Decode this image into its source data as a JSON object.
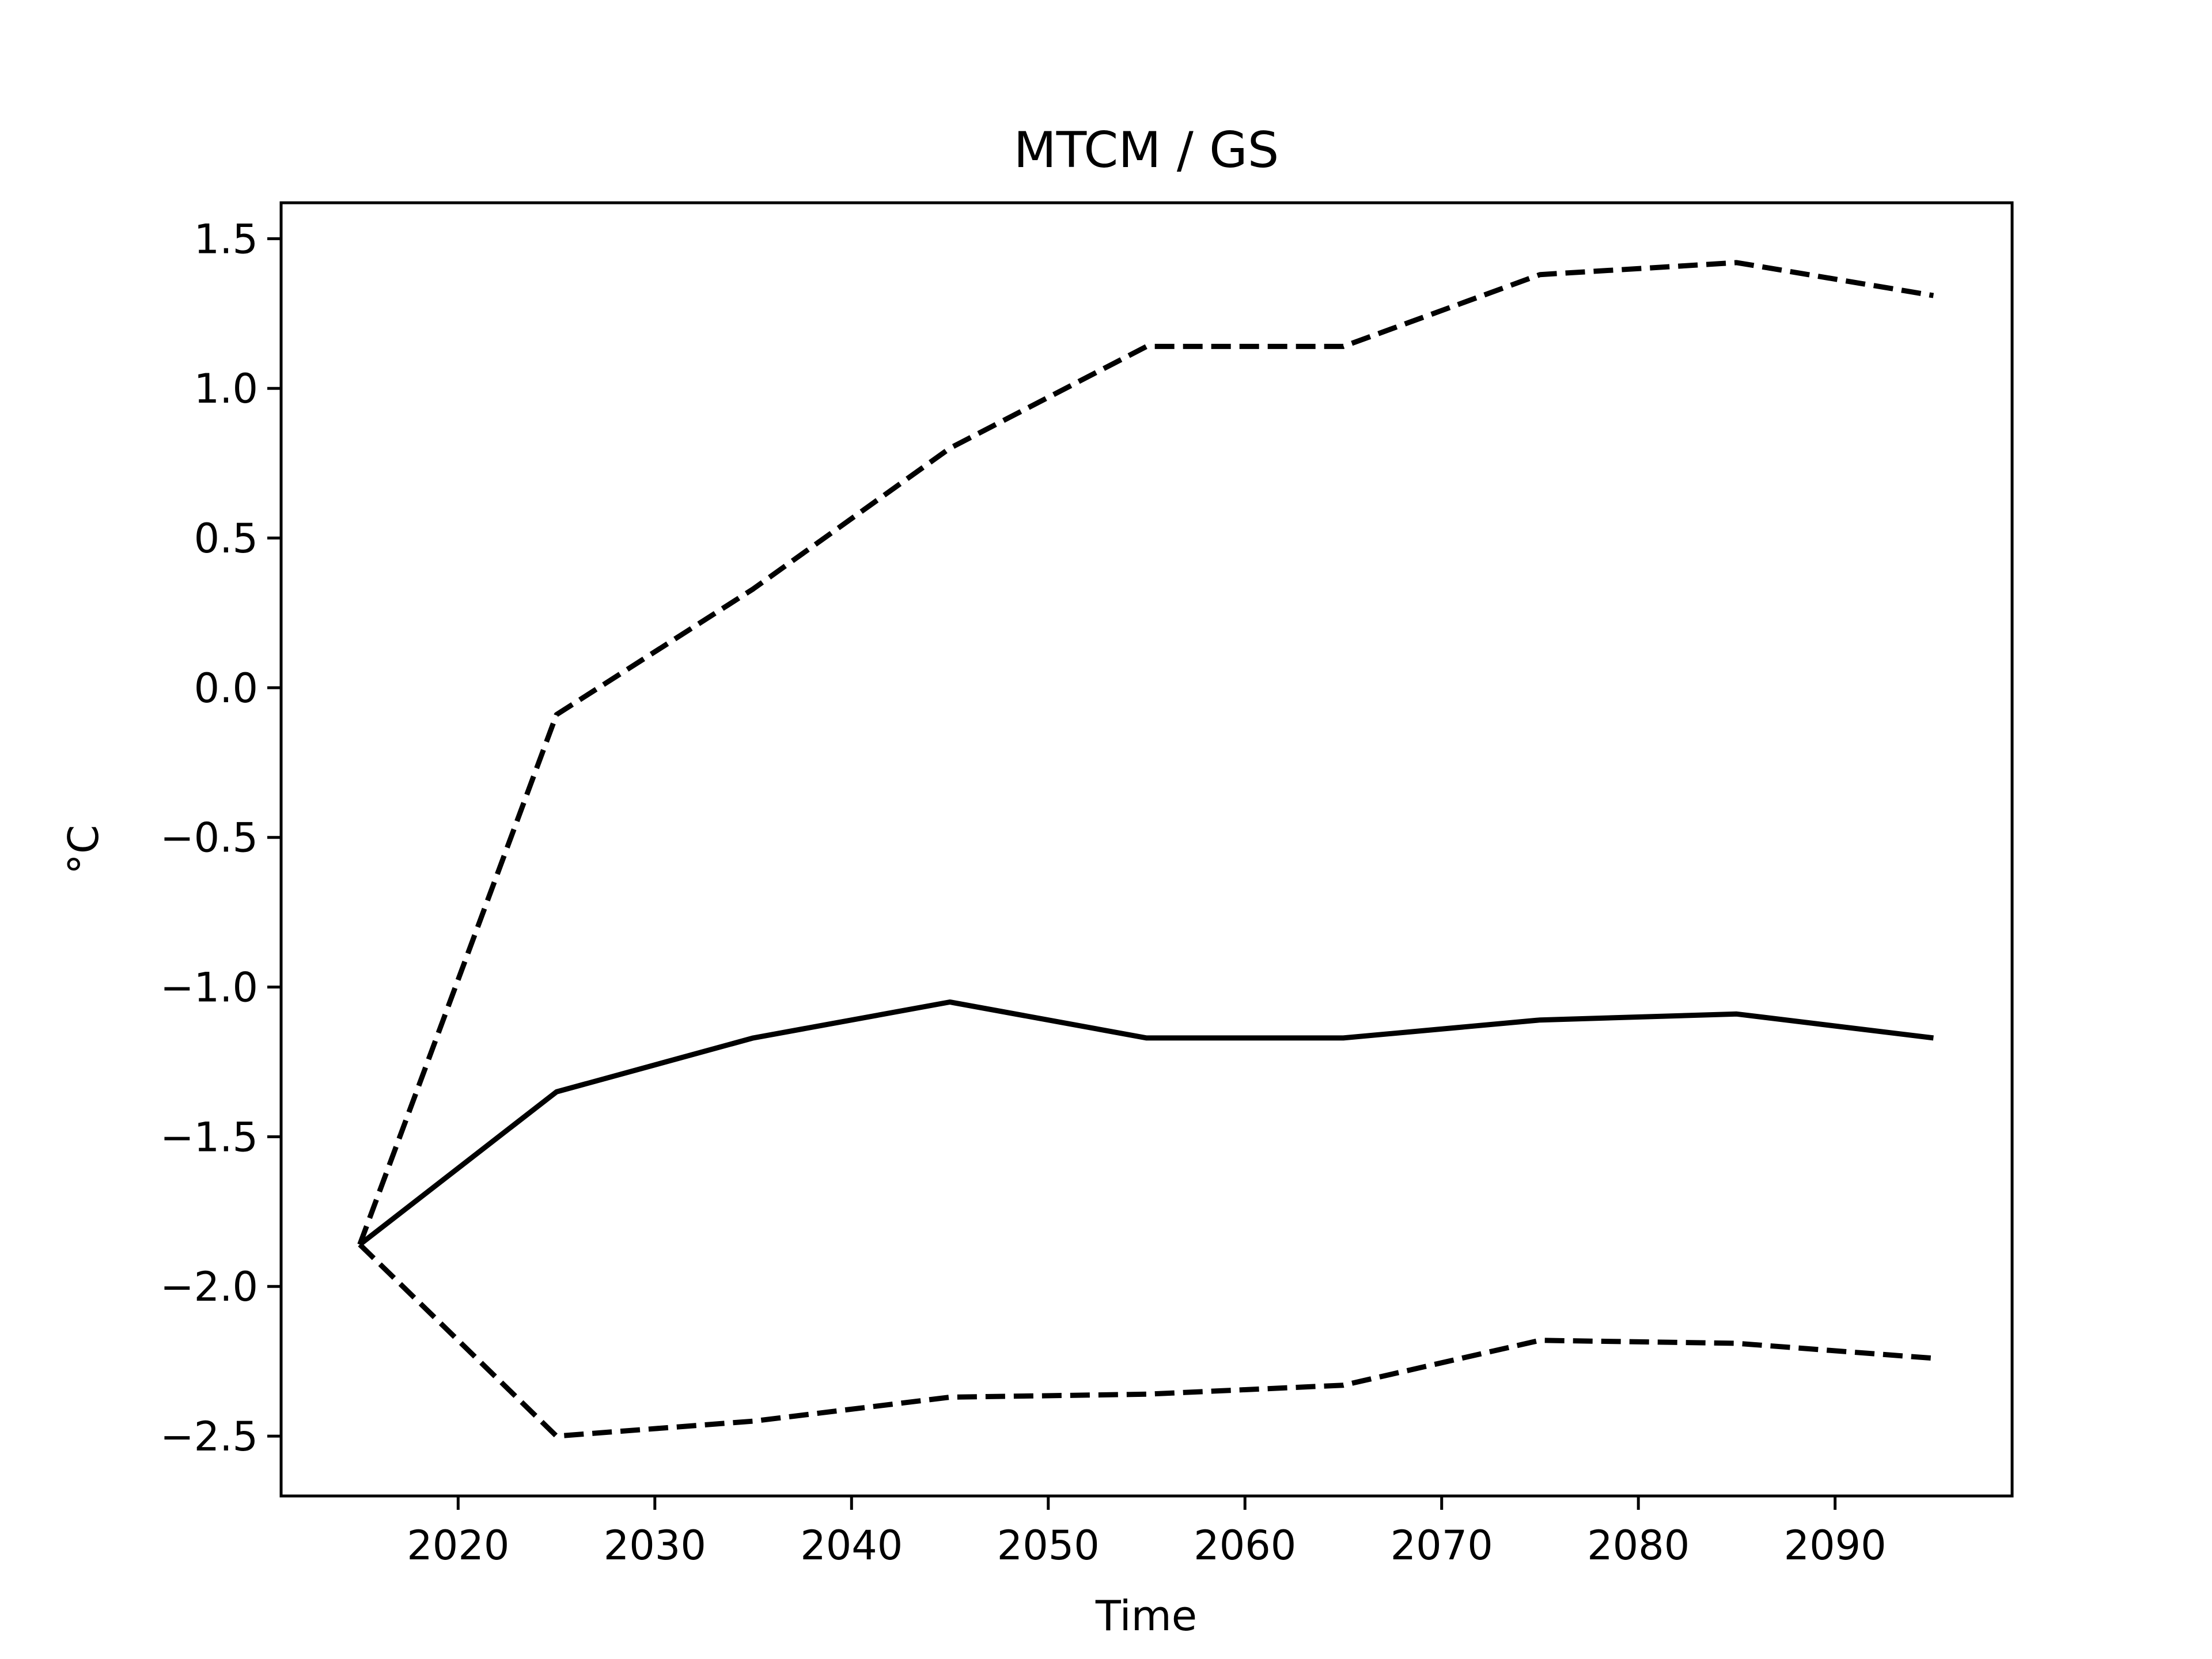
{
  "chart_data": {
    "type": "line",
    "title": "MTCM / GS",
    "xlabel": "Time",
    "ylabel": "°C",
    "x": [
      2015,
      2025,
      2035,
      2045,
      2055,
      2065,
      2075,
      2085,
      2095
    ],
    "series": [
      {
        "values": [
          -1.86,
          -1.35,
          -1.17,
          -1.05,
          -1.17,
          -1.17,
          -1.11,
          -1.09,
          -1.17
        ],
        "line_style": "solid",
        "color": "#000000"
      },
      {
        "values": [
          -1.86,
          -0.09,
          0.33,
          0.8,
          1.14,
          1.14,
          1.38,
          1.42,
          1.31
        ],
        "line_style": "dashed",
        "color": "#000000"
      },
      {
        "values": [
          -1.86,
          -2.5,
          -2.45,
          -2.37,
          -2.36,
          -2.33,
          -2.18,
          -2.19,
          -2.24
        ],
        "line_style": "dashed",
        "color": "#000000"
      }
    ],
    "xlim": [
      2011.0,
      2099.0
    ],
    "ylim": [
      -2.7,
      1.62
    ],
    "xticks": [
      2020,
      2030,
      2040,
      2050,
      2060,
      2070,
      2080,
      2090
    ],
    "xtick_labels": [
      "2020",
      "2030",
      "2040",
      "2050",
      "2060",
      "2070",
      "2080",
      "2090"
    ],
    "yticks": [
      1.5,
      1.0,
      0.5,
      0.0,
      -0.5,
      -1.0,
      -1.5,
      -2.0,
      -2.5
    ],
    "ytick_labels": [
      "1.5",
      "1.0",
      "0.5",
      "0.0",
      "−0.5",
      "−1.0",
      "−1.5",
      "−2.0",
      "−2.5"
    ],
    "grid": false,
    "legend": "none"
  }
}
